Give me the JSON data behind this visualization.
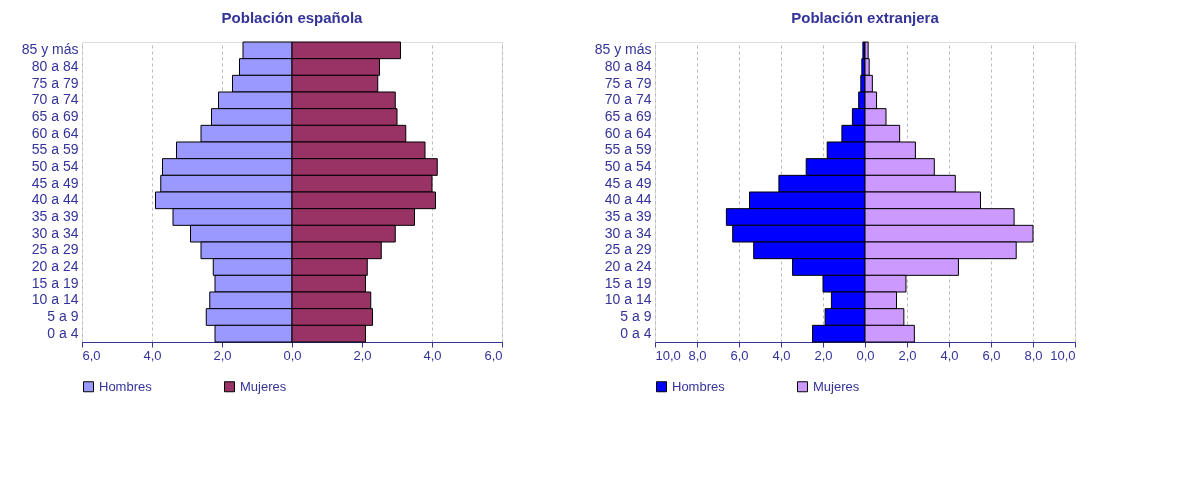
{
  "chart_data": [
    {
      "type": "bar",
      "orientation": "horizontal",
      "stacked": true,
      "title": "Población española",
      "categories": [
        "85 y más",
        "80 a 84",
        "75 a 79",
        "70 a 74",
        "65 a 69",
        "60 a 64",
        "55 a 59",
        "50 a 54",
        "45 a 49",
        "40 a 44",
        "35 a 39",
        "30 a 34",
        "25 a 29",
        "20 a 24",
        "15 a 19",
        "10 a 14",
        "5 a 9",
        "0 a 4"
      ],
      "series": [
        {
          "name": "Hombres",
          "color": "#9999ff",
          "values": [
            -1.4,
            -1.5,
            -1.7,
            -2.1,
            -2.3,
            -2.6,
            -3.3,
            -3.7,
            -3.75,
            -3.9,
            -3.4,
            -2.9,
            -2.6,
            -2.25,
            -2.2,
            -2.35,
            -2.45,
            -2.2
          ]
        },
        {
          "name": "Mujeres",
          "color": "#993366",
          "values": [
            3.1,
            2.5,
            2.45,
            2.95,
            3.0,
            3.25,
            3.8,
            4.15,
            4.0,
            4.1,
            3.5,
            2.95,
            2.55,
            2.15,
            2.1,
            2.25,
            2.3,
            2.1
          ]
        }
      ],
      "xlim": [
        -6,
        6
      ],
      "xticks": [
        {
          "value": -6,
          "label": "6,0"
        },
        {
          "value": -4,
          "label": "4,0"
        },
        {
          "value": -2,
          "label": "2,0"
        },
        {
          "value": 0,
          "label": "0,0"
        },
        {
          "value": 2,
          "label": "2,0"
        },
        {
          "value": 4,
          "label": "4,0"
        },
        {
          "value": 6,
          "label": "6,0"
        }
      ],
      "grid": "x",
      "legend": "bottom"
    },
    {
      "type": "bar",
      "orientation": "horizontal",
      "stacked": true,
      "title": "Población extranjera",
      "categories": [
        "85 y más",
        "80 a 84",
        "75 a 79",
        "70 a 74",
        "65 a 69",
        "60 a 64",
        "55 a 59",
        "50 a 54",
        "45 a 49",
        "40 a 44",
        "35 a 39",
        "30 a 34",
        "25 a 29",
        "20 a 24",
        "15 a 19",
        "10 a 14",
        "5 a 9",
        "0 a 4"
      ],
      "series": [
        {
          "name": "Hombres",
          "color": "#0000ff",
          "values": [
            -0.1,
            -0.15,
            -0.2,
            -0.3,
            -0.6,
            -1.1,
            -1.8,
            -2.8,
            -4.1,
            -5.5,
            -6.6,
            -6.3,
            -5.3,
            -3.45,
            -2.0,
            -1.6,
            -1.9,
            -2.5
          ]
        },
        {
          "name": "Mujeres",
          "color": "#cc99ff",
          "values": [
            0.15,
            0.2,
            0.35,
            0.55,
            1.0,
            1.65,
            2.4,
            3.3,
            4.3,
            5.5,
            7.1,
            8.0,
            7.2,
            4.45,
            1.95,
            1.5,
            1.85,
            2.35
          ]
        }
      ],
      "xlim": [
        -10,
        10
      ],
      "xticks": [
        {
          "value": -10,
          "label": "10,0"
        },
        {
          "value": -8,
          "label": "8,0"
        },
        {
          "value": -6,
          "label": "6,0"
        },
        {
          "value": -4,
          "label": "4,0"
        },
        {
          "value": -2,
          "label": "2,0"
        },
        {
          "value": 0,
          "label": "0,0"
        },
        {
          "value": 2,
          "label": "2,0"
        },
        {
          "value": 4,
          "label": "4,0"
        },
        {
          "value": 6,
          "label": "6,0"
        },
        {
          "value": 8,
          "label": "8,0"
        },
        {
          "value": 10,
          "label": "10,0"
        }
      ],
      "grid": "x",
      "legend": "bottom"
    }
  ]
}
